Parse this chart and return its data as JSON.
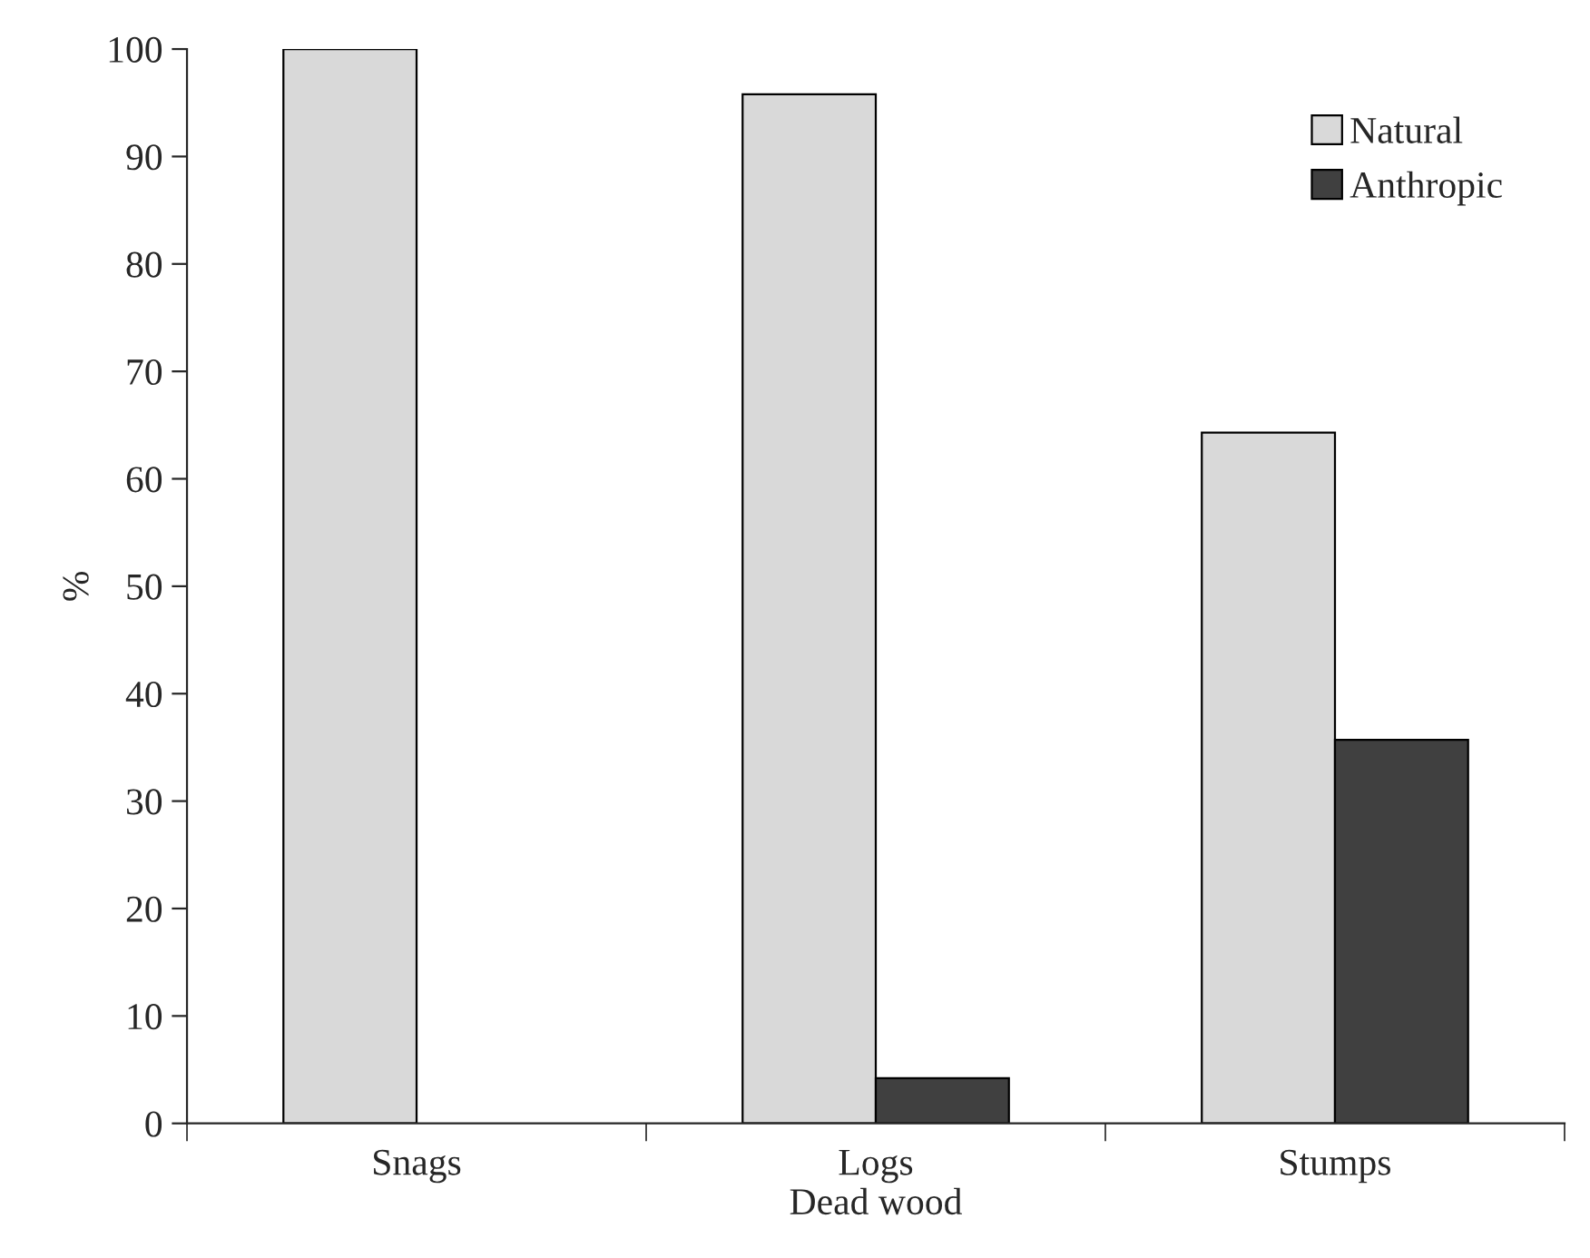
{
  "chart_data": {
    "type": "bar",
    "xlabel": "Dead wood",
    "ylabel": "%",
    "categories": [
      "Snags",
      "Logs",
      "Stumps"
    ],
    "series": [
      {
        "name": "Natural",
        "color": "#d9d9d9",
        "values": [
          100,
          95.8,
          64.3
        ]
      },
      {
        "name": "Anthropic",
        "color": "#404040",
        "values": [
          null,
          4.2,
          35.7
        ]
      }
    ],
    "ylim": [
      0,
      100
    ],
    "yticks": [
      0,
      10,
      20,
      30,
      40,
      50,
      60,
      70,
      80,
      90,
      100
    ],
    "grid": false,
    "legend": "top right"
  }
}
